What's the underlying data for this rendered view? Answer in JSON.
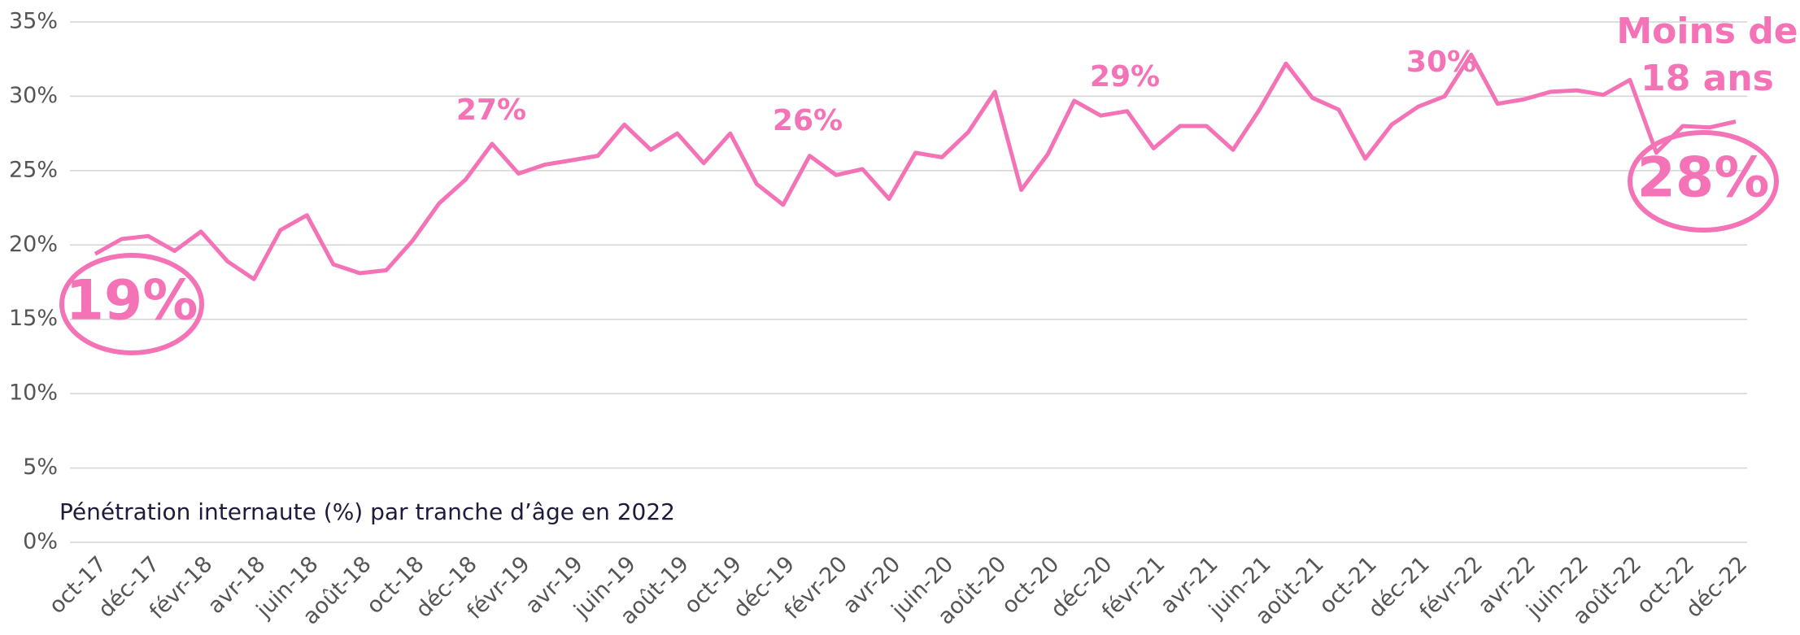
{
  "chart_data": {
    "type": "line",
    "subtitle": "Pénétration internaute (%) par tranche d’âge en 2022",
    "categories": [
      "oct-17",
      null,
      "déc-17",
      null,
      "févr-18",
      null,
      "avr-18",
      null,
      "juin-18",
      null,
      "août-18",
      null,
      "oct-18",
      null,
      "déc-18",
      null,
      "févr-19",
      null,
      "avr-19",
      null,
      "juin-19",
      null,
      "août-19",
      null,
      "oct-19",
      null,
      "déc-19",
      null,
      "févr-20",
      null,
      "avr-20",
      null,
      "juin-20",
      null,
      "août-20",
      null,
      "oct-20",
      null,
      "déc-20",
      null,
      "févr-21",
      null,
      "avr-21",
      null,
      "juin-21",
      null,
      "août-21",
      null,
      "oct-21",
      null,
      "déc-21",
      null,
      "févr-22",
      null,
      "avr-22",
      null,
      "juin-22",
      null,
      "août-22",
      null,
      "oct-22",
      null,
      "déc-22"
    ],
    "series": [
      {
        "name": "Moins de 18 ans",
        "color": "#f472b6",
        "values": [
          19.4,
          20.4,
          20.6,
          19.6,
          20.9,
          18.9,
          17.7,
          21.0,
          22.0,
          18.7,
          18.1,
          18.3,
          20.3,
          22.8,
          24.4,
          26.8,
          24.8,
          25.4,
          25.7,
          26.0,
          28.1,
          26.4,
          27.5,
          25.5,
          27.5,
          24.1,
          22.7,
          26.0,
          24.7,
          25.1,
          23.1,
          26.2,
          25.9,
          27.6,
          30.3,
          23.7,
          26.1,
          29.7,
          28.7,
          29.0,
          26.5,
          28.0,
          28.0,
          26.4,
          29.1,
          32.2,
          29.9,
          29.1,
          25.8,
          28.1,
          29.3,
          30.0,
          32.8,
          29.5,
          29.8,
          30.3,
          30.4,
          30.1,
          31.1,
          26.2,
          28.0,
          27.9,
          28.3
        ]
      }
    ],
    "ylim": [
      0,
      35
    ],
    "yticks": [
      {
        "value": 0,
        "label": "0%"
      },
      {
        "value": 5,
        "label": "5%"
      },
      {
        "value": 10,
        "label": "10%"
      },
      {
        "value": 15,
        "label": "15%"
      },
      {
        "value": 20,
        "label": "20%"
      },
      {
        "value": 25,
        "label": "25%"
      },
      {
        "value": 30,
        "label": "30%"
      },
      {
        "value": 35,
        "label": "35%"
      }
    ],
    "grid": true,
    "annotations": [
      "27%",
      "26%",
      "29%",
      "30%",
      "19%",
      "28%"
    ],
    "legend_label": [
      "Moins de",
      "18 ans"
    ]
  }
}
